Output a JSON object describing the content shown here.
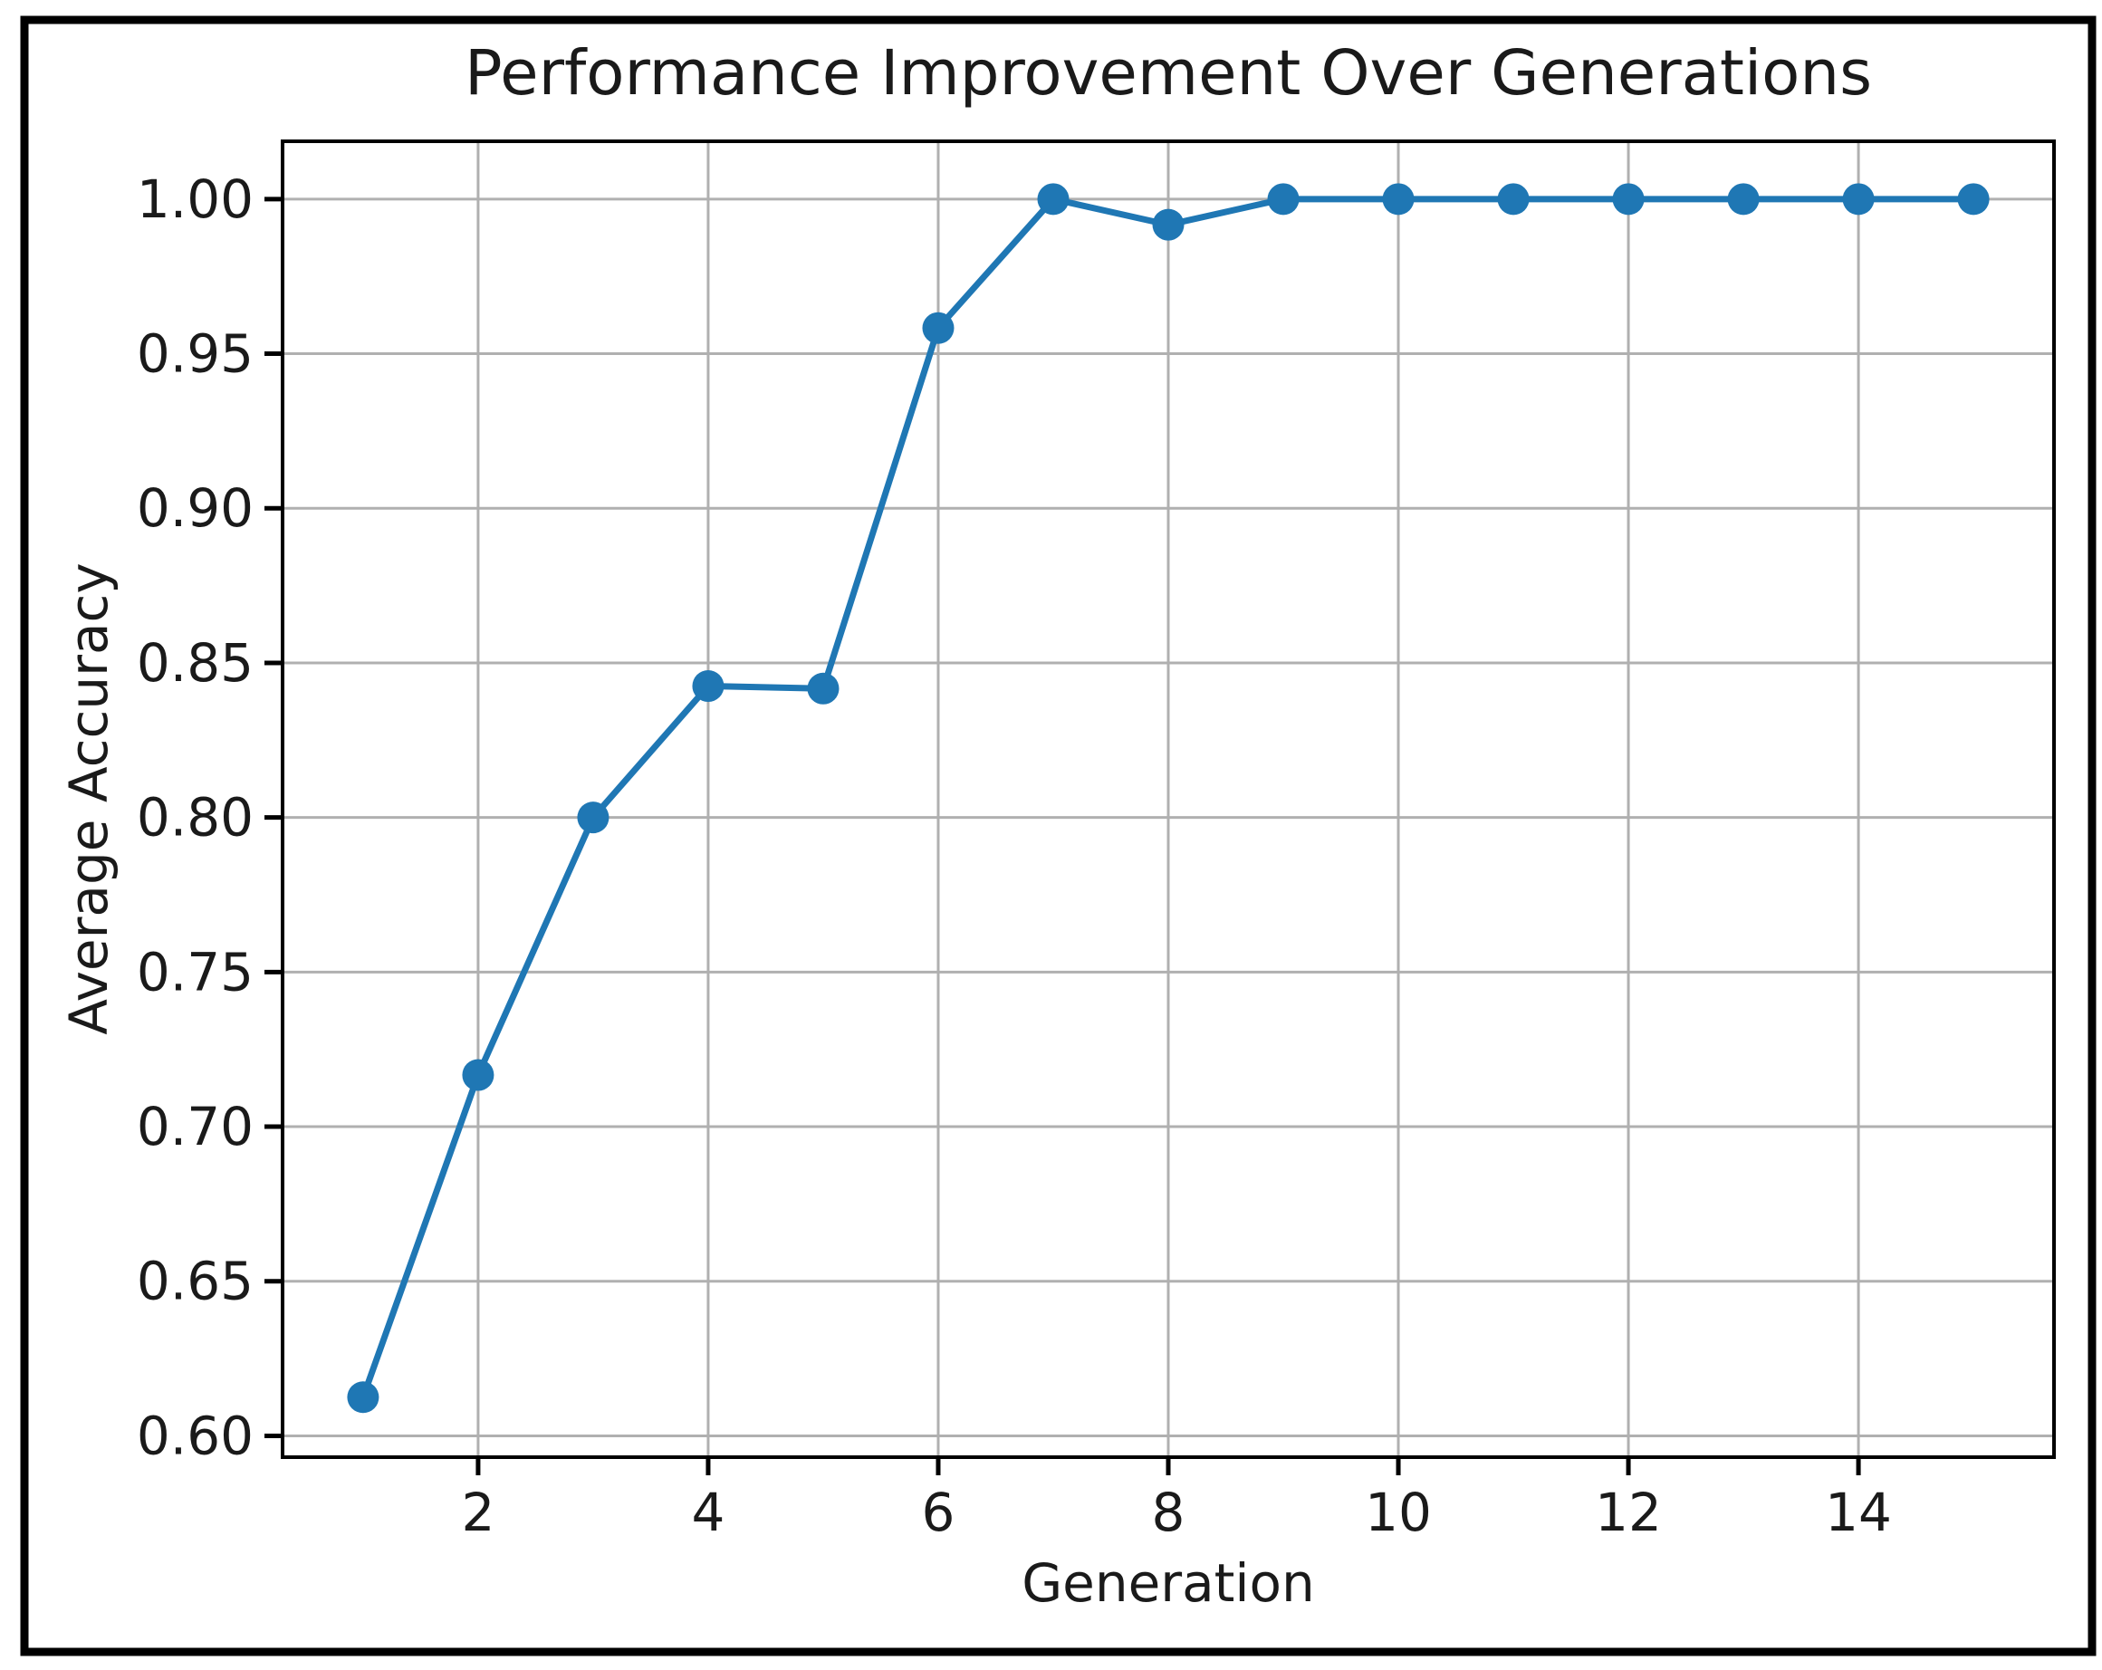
{
  "figure": {
    "background": "#ffffff",
    "border_color": "#000000"
  },
  "chart_data": {
    "type": "line",
    "title": "Performance Improvement Over Generations",
    "xlabel": "Generation",
    "ylabel": "Average Accuracy",
    "x": [
      1,
      2,
      3,
      4,
      5,
      6,
      7,
      8,
      9,
      10,
      11,
      12,
      13,
      14,
      15
    ],
    "y": [
      0.6125,
      0.7167,
      0.8,
      0.8425,
      0.8417,
      0.9583,
      1.0,
      0.9917,
      1.0,
      1.0,
      1.0,
      1.0,
      1.0,
      1.0,
      1.0
    ],
    "xlim": [
      0.3,
      15.7
    ],
    "ylim": [
      0.5931,
      1.0187
    ],
    "xticks": {
      "values": [
        2,
        4,
        6,
        8,
        10,
        12,
        14
      ],
      "labels": [
        "2",
        "4",
        "6",
        "8",
        "10",
        "12",
        "14"
      ]
    },
    "yticks": {
      "values": [
        0.6,
        0.65,
        0.7,
        0.75,
        0.8,
        0.85,
        0.9,
        0.95,
        1.0
      ],
      "labels": [
        "0.60",
        "0.65",
        "0.70",
        "0.75",
        "0.80",
        "0.85",
        "0.90",
        "0.95",
        "1.00"
      ]
    },
    "grid": true,
    "legend": null,
    "line_color": "#1f77b4",
    "marker": "o",
    "marker_color": "#1f77b4",
    "grid_color": "#b0b0b0",
    "spine_color": "#000000",
    "text_color": "#1a1a1a"
  }
}
